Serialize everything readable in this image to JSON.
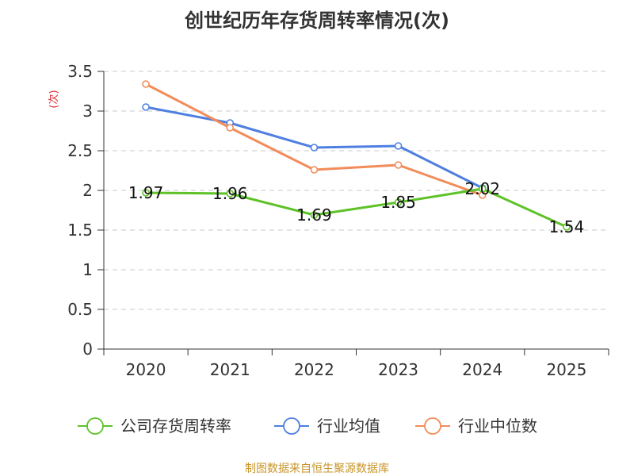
{
  "chart_data": {
    "type": "line",
    "title": "创世纪历年存货周转率情况(次)",
    "unit_label": "(次)",
    "categories": [
      "2020",
      "2021",
      "2022",
      "2023",
      "2024",
      "2025"
    ],
    "ylim": [
      0,
      3.5
    ],
    "yticks": [
      0,
      0.5,
      1,
      1.5,
      2,
      2.5,
      3,
      3.5
    ],
    "ytick_labels": [
      "0",
      "0.5",
      "1",
      "1.5",
      "2",
      "2.5",
      "3",
      "3.5"
    ],
    "grid": true,
    "legend_position": "bottom",
    "series": [
      {
        "name": "公司存货周转率",
        "color": "#5ec228",
        "values": [
          1.97,
          1.96,
          1.69,
          1.85,
          2.02,
          1.54
        ],
        "show_labels": true,
        "labels": [
          "1.97",
          "1.96",
          "1.69",
          "1.85",
          "2.02",
          "1.54"
        ]
      },
      {
        "name": "行业均值",
        "color": "#4f7fe0",
        "values": [
          3.05,
          2.85,
          2.54,
          2.56,
          2.03,
          null
        ],
        "show_labels": false
      },
      {
        "name": "行业中位数",
        "color": "#f28c5a",
        "values": [
          3.34,
          2.79,
          2.26,
          2.32,
          1.94,
          null
        ],
        "show_labels": false
      }
    ]
  },
  "source": "制图数据来自恒生聚源数据库"
}
